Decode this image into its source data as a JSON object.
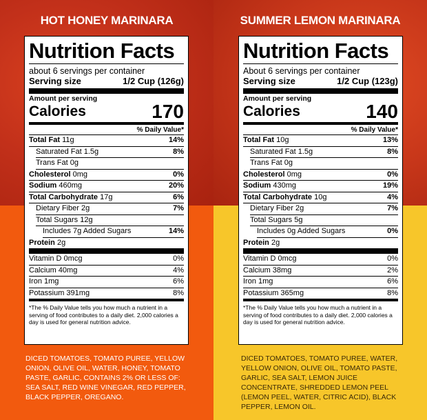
{
  "left": {
    "product_name": "HOT HONEY MARINARA",
    "title": "Nutrition Facts",
    "servings_per_container": "about 6 servings per container",
    "serving_size_label": "Serving size",
    "serving_size_value": "1/2 Cup (126g)",
    "amount_per_serving": "Amount per serving",
    "calories_label": "Calories",
    "calories_value": "170",
    "dv_header": "% Daily Value*",
    "nutrients": [
      {
        "name": "Total Fat",
        "amount": "11g",
        "dv": "14%"
      },
      {
        "name": "Saturated Fat",
        "amount": "1.5g",
        "dv": "8%"
      },
      {
        "name": "Trans Fat",
        "amount": "0g",
        "dv": ""
      },
      {
        "name": "Cholesterol",
        "amount": "0mg",
        "dv": "0%"
      },
      {
        "name": "Sodium",
        "amount": "460mg",
        "dv": "20%"
      },
      {
        "name": "Total Carbohydrate",
        "amount": "17g",
        "dv": "6%"
      },
      {
        "name": "Dietary Fiber",
        "amount": "2g",
        "dv": "7%"
      },
      {
        "name": "Total Sugars",
        "amount": "12g",
        "dv": ""
      },
      {
        "name": "Includes 7g Added Sugars",
        "amount": "",
        "dv": "14%"
      },
      {
        "name": "Protein",
        "amount": "2g",
        "dv": ""
      }
    ],
    "vitamins": [
      {
        "name": "Vitamin D",
        "amount": "0mcg",
        "dv": "0%"
      },
      {
        "name": "Calcium",
        "amount": "40mg",
        "dv": "4%"
      },
      {
        "name": "Iron",
        "amount": "1mg",
        "dv": "6%"
      },
      {
        "name": "Potassium",
        "amount": "391mg",
        "dv": "8%"
      }
    ],
    "footnote": "*The % Daily Value tells you how much a nutrient in a serving of food contributes to a daily diet. 2,000 calories a day is used for general nutrition advice.",
    "ingredients": "DICED TOMATOES, TOMATO PUREE, YELLOW ONION, OLIVE OIL, WATER, HONEY, TOMATO PASTE, GARLIC, CONTAINS 2% OR LESS OF: SEA SALT, RED WINE VINEGAR, RED PEPPER, BLACK PEPPER, OREGANO."
  },
  "right": {
    "product_name": "SUMMER LEMON MARINARA",
    "title": "Nutrition Facts",
    "servings_per_container": "About 6 servings per container",
    "serving_size_label": "Serving size",
    "serving_size_value": "1/2 Cup (123g)",
    "amount_per_serving": "Amount per serving",
    "calories_label": "Calories",
    "calories_value": "140",
    "dv_header": "% Daily Value*",
    "nutrients": [
      {
        "name": "Total Fat",
        "amount": "10g",
        "dv": "13%"
      },
      {
        "name": "Saturated Fat",
        "amount": "1.5g",
        "dv": "8%"
      },
      {
        "name": "Trans Fat",
        "amount": "0g",
        "dv": ""
      },
      {
        "name": "Cholesterol",
        "amount": "0mg",
        "dv": "0%"
      },
      {
        "name": "Sodium",
        "amount": "430mg",
        "dv": "19%"
      },
      {
        "name": "Total Carbohydrate",
        "amount": "10g",
        "dv": "4%"
      },
      {
        "name": "Dietary Fiber",
        "amount": "2g",
        "dv": "7%"
      },
      {
        "name": "Total Sugars",
        "amount": "5g",
        "dv": ""
      },
      {
        "name": "Includes 0g Added Sugars",
        "amount": "",
        "dv": "0%"
      },
      {
        "name": "Protein",
        "amount": "2g",
        "dv": ""
      }
    ],
    "vitamins": [
      {
        "name": "Vitamin D",
        "amount": "0mcg",
        "dv": "0%"
      },
      {
        "name": "Calcium",
        "amount": "38mg",
        "dv": "2%"
      },
      {
        "name": "Iron",
        "amount": "1mg",
        "dv": "6%"
      },
      {
        "name": "Potassium",
        "amount": "365mg",
        "dv": "8%"
      }
    ],
    "footnote": "*The % Daily Value tells you how much a nutrient in a serving of food contributes to a daily diet. 2,000 calories a day is used for general nutrition advice.",
    "ingredients": "DICED TOMATOES, TOMATO PUREE, WATER, YELLOW ONION, OLIVE OIL, TOMATO PASTE, GARLIC, SEA SALT, LEMON JUICE CONCENTRATE, SHREDDED LEMON PEEL (LEMON PEEL, WATER, CITRIC ACID), BLACK PEPPER, LEMON OIL."
  },
  "colors": {
    "left_bottom": "#f25a0e",
    "right_bottom": "#f7c62a",
    "sauce_red": "#c2301a"
  }
}
